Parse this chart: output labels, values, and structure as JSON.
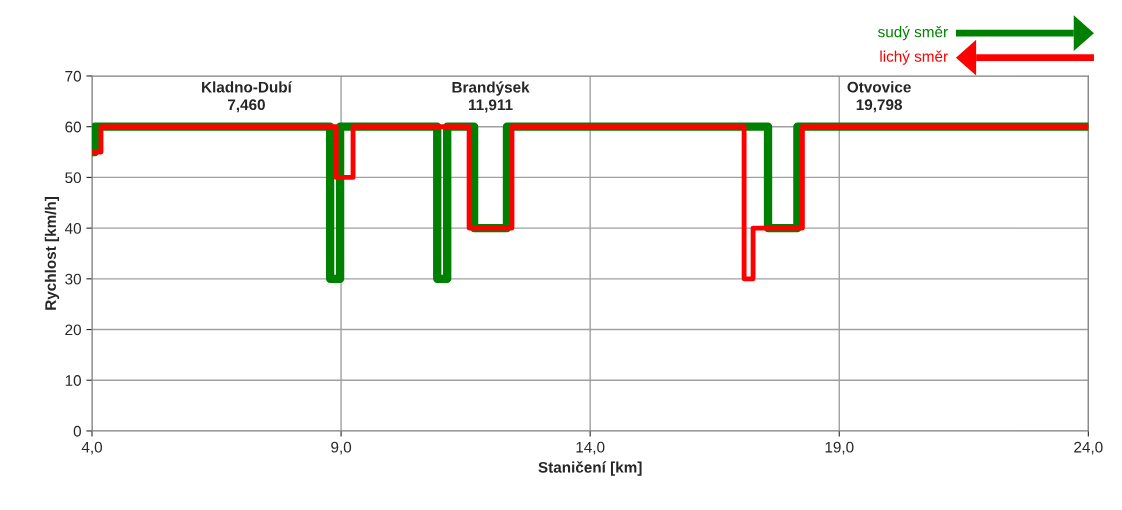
{
  "chart_data": {
    "type": "step",
    "xlabel": "Staničení [km]",
    "ylabel": "Rychlost [km/h]",
    "xlim": [
      4,
      24
    ],
    "ylim": [
      0,
      70
    ],
    "xticks": [
      {
        "value": 4,
        "label": "4,0"
      },
      {
        "value": 9,
        "label": "9,0"
      },
      {
        "value": 14,
        "label": "14,0"
      },
      {
        "value": 19,
        "label": "19,0"
      },
      {
        "value": 24,
        "label": "24,0"
      }
    ],
    "yticks": [
      0,
      10,
      20,
      30,
      40,
      50,
      60,
      70
    ],
    "grid": true,
    "legend": "top right",
    "marker": "none",
    "line_style": "solid",
    "series": [
      {
        "name": "sudý směr",
        "color": "#008000",
        "x": [
          4.0,
          4.06,
          8.78,
          8.98,
          10.93,
          11.13,
          11.67,
          12.33,
          17.57,
          18.16,
          24.0
        ],
        "values": [
          55,
          60,
          30,
          60,
          30,
          60,
          40,
          60,
          40,
          60,
          60
        ]
      },
      {
        "name": "lichý směr",
        "color": "#ff0000",
        "x": [
          4.0,
          4.18,
          8.9,
          9.24,
          11.57,
          12.43,
          17.09,
          17.27,
          18.26,
          24.0
        ],
        "values": [
          55,
          60,
          50,
          60,
          40,
          60,
          30,
          40,
          60,
          60
        ]
      }
    ],
    "annotations": [
      "Kladno-Dubí\n7,460",
      "Brandýsek\n11,911",
      "Otvovice\n19,798"
    ]
  }
}
